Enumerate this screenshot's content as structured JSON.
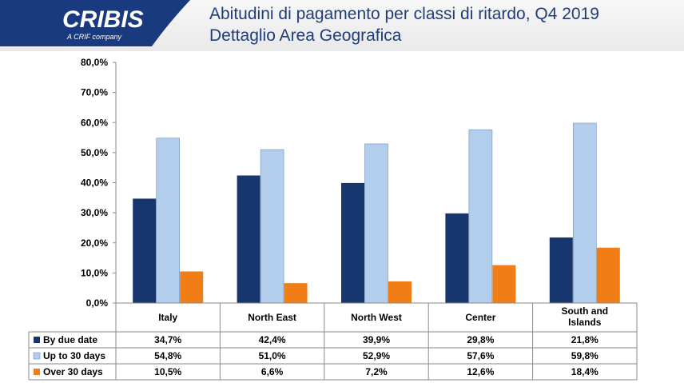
{
  "header": {
    "title_line1": "Abitudini di pagamento per classi di ritardo, Q4 2019",
    "title_line2": "Dettaglio Area Geografica",
    "logo_text": "CRIBIS",
    "logo_subtext": "A CRIF company",
    "brand_color": "#1a3a80"
  },
  "chart_data": {
    "type": "bar",
    "categories": [
      "Italy",
      "North East",
      "North West",
      "Center",
      "South and Islands"
    ],
    "series": [
      {
        "name": "By due date",
        "color": "#17366e",
        "values": [
          34.7,
          42.4,
          39.9,
          29.8,
          21.8
        ],
        "labels": [
          "34,7%",
          "42,4%",
          "39,9%",
          "29,8%",
          "21,8%"
        ]
      },
      {
        "name": "Up to 30 days",
        "color": "#b3cdec",
        "values": [
          54.8,
          51.0,
          52.9,
          57.6,
          59.8
        ],
        "labels": [
          "54,8%",
          "51,0%",
          "52,9%",
          "57,6%",
          "59,8%"
        ]
      },
      {
        "name": "Over 30 days",
        "color": "#f07d16",
        "values": [
          10.5,
          6.6,
          7.2,
          12.6,
          18.4
        ],
        "labels": [
          "10,5%",
          "6,6%",
          "7,2%",
          "12,6%",
          "18,4%"
        ]
      }
    ],
    "ylim": [
      0,
      80
    ],
    "yticks": [
      "0,0%",
      "10,0%",
      "20,0%",
      "30,0%",
      "40,0%",
      "50,0%",
      "60,0%",
      "70,0%",
      "80,0%"
    ],
    "grid": false,
    "legend": "data-table"
  }
}
